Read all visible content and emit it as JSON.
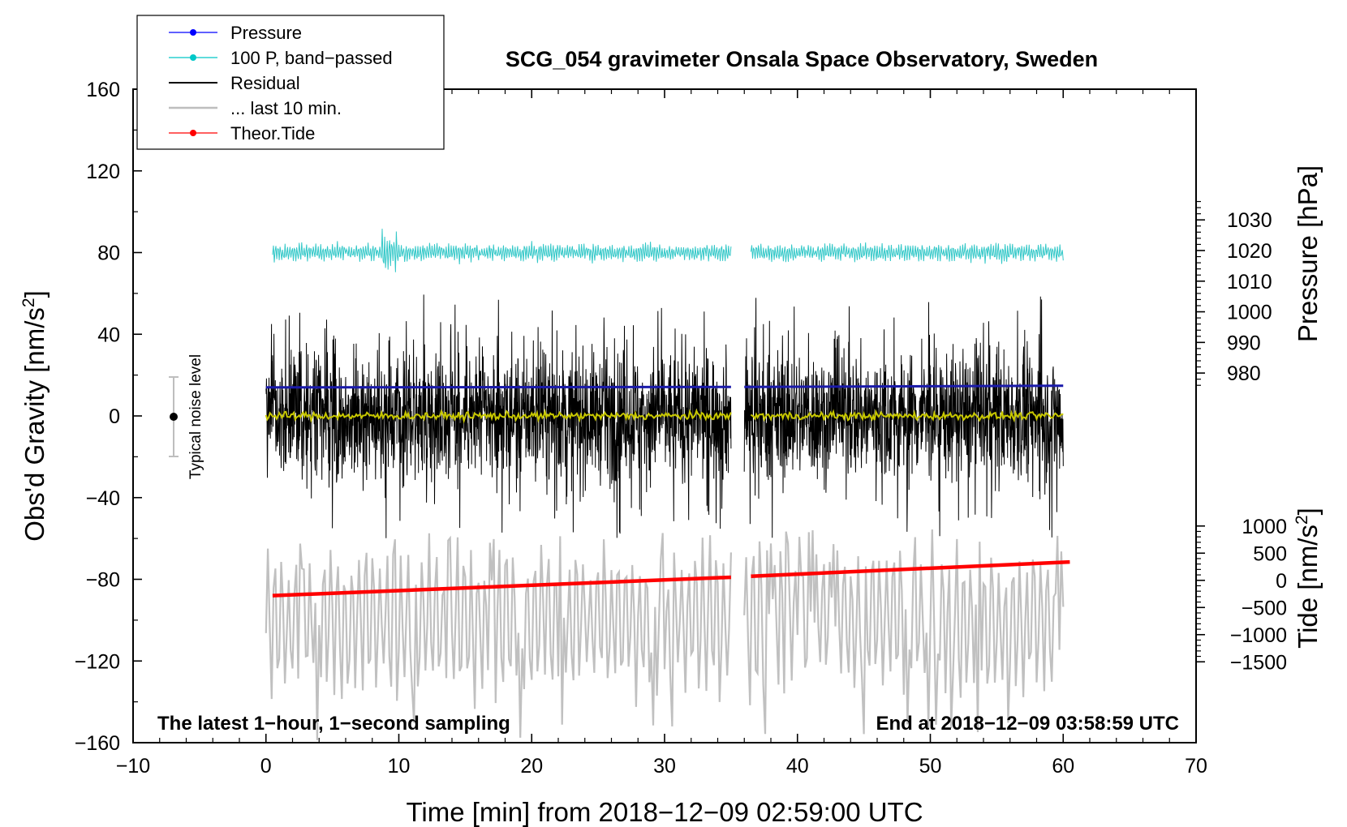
{
  "chart_data": {
    "type": "line",
    "title": "SCG_054 gravimeter Onsala Space Observatory, Sweden",
    "xlabel": "Time [min] from 2018−12−09 02:59:00 UTC",
    "ylabel_left_prefix": "Obs'd Gravity [nm/s",
    "ylabel_left_sup": "2",
    "ylabel_left_suffix": "]",
    "ylabel_right_pressure": "Pressure [hPa]",
    "ylabel_right_tide_prefix": "Tide [nm/s",
    "ylabel_right_tide_sup": "2",
    "ylabel_right_tide_suffix": "]",
    "xlim": [
      -10,
      70
    ],
    "ylim_left": [
      -160,
      160
    ],
    "x_ticks": [
      -10,
      0,
      10,
      20,
      30,
      40,
      50,
      60,
      70
    ],
    "x_tick_labels": [
      "−10",
      "0",
      "10",
      "20",
      "30",
      "40",
      "50",
      "60",
      "70"
    ],
    "y_ticks_left": [
      160,
      120,
      80,
      40,
      0,
      -40,
      -80,
      -120,
      -160
    ],
    "y_tick_labels_left": [
      "160",
      "120",
      "80",
      "40",
      "0",
      "−40",
      "−80",
      "−120",
      "−160"
    ],
    "pressure_axis": {
      "ticks": [
        1030,
        1020,
        1010,
        1000,
        990,
        980
      ],
      "tick_labels": [
        "1030",
        "1020",
        "1010",
        "1000",
        "990",
        "980"
      ],
      "left_value_at_0": 966,
      "hpa_per_left_unit": 0.6667
    },
    "tide_axis": {
      "ticks": [
        1000,
        500,
        0,
        -500,
        -1000,
        -1500
      ],
      "tick_labels": [
        "1000",
        "500",
        "0",
        "−500",
        "−1000",
        "−1500"
      ],
      "left_value_at_tide_0": -80.5,
      "left_units_per_tide_unit": 0.0266
    },
    "legend": [
      {
        "label": "Pressure",
        "color": "#0000ff",
        "marker": true
      },
      {
        "label": "100 P, band−passed",
        "color": "#00c8c8",
        "marker": true
      },
      {
        "label": "Residual",
        "color": "#000000",
        "marker": false
      },
      {
        "label": "... last 10 min.",
        "color": "#bebebe",
        "marker": false
      },
      {
        "label": "Theor.Tide",
        "color": "#ff0000",
        "marker": true
      }
    ],
    "series": [
      {
        "name": "Pressure",
        "color": "#1a1aaa",
        "segments": [
          [
            0.0,
            35.0,
            14.0,
            14.2
          ],
          [
            36.0,
            60.0,
            14.2,
            14.8
          ]
        ]
      },
      {
        "name": "100 P, band-passed",
        "color": "#33c8c8",
        "center": 80,
        "amplitude": 5,
        "segments": [
          [
            0.5,
            35.0
          ],
          [
            36.5,
            60.0
          ]
        ]
      },
      {
        "name": "Residual",
        "color": "#000000",
        "amplitude": 30,
        "min": -65,
        "max": 62,
        "segments": [
          [
            0.0,
            35.0
          ],
          [
            36.0,
            60.0
          ]
        ]
      },
      {
        "name": "Residual smoothed",
        "color": "#c8c800",
        "center": 0,
        "amplitude": 2,
        "segments": [
          [
            0.0,
            35.0
          ],
          [
            36.5,
            60.0
          ]
        ]
      },
      {
        "name": "... last 10 min.",
        "color": "#c0c0c0",
        "amplitude": 25,
        "min": -160,
        "max": -52,
        "segments": [
          [
            0.0,
            35.0
          ],
          [
            36.0,
            60.0
          ]
        ]
      },
      {
        "name": "Theor.Tide",
        "color": "#ff0000",
        "segments": [
          [
            0.5,
            35.0,
            -88,
            -79
          ],
          [
            36.5,
            60.5,
            -78.5,
            -71.5
          ]
        ]
      }
    ],
    "noise_bar": {
      "x": -7,
      "y": 0,
      "low": -20,
      "high": 20,
      "label": "Typical noise level"
    },
    "annotations": {
      "left": "The latest 1−hour, 1−second sampling",
      "right": "End at 2018−12−09 03:58:59 UTC"
    }
  }
}
